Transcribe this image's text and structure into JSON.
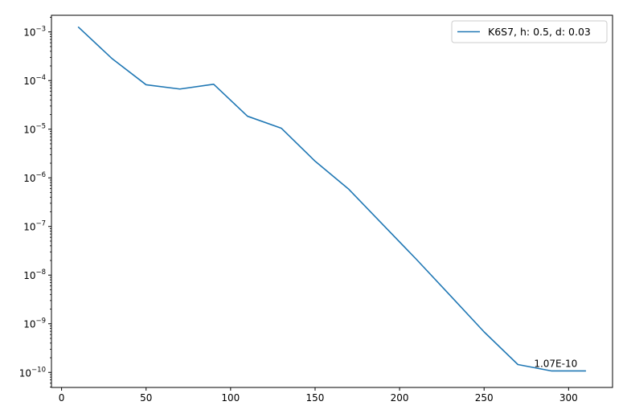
{
  "chart_data": {
    "type": "line",
    "title": "",
    "xlabel": "",
    "ylabel": "",
    "xscale": "linear",
    "yscale": "log",
    "xlim": [
      -6,
      326
    ],
    "ylim": [
      4.9e-11,
      0.0022
    ],
    "xticks": [
      0,
      50,
      100,
      150,
      200,
      250,
      300
    ],
    "xtick_labels": [
      "0",
      "50",
      "100",
      "150",
      "200",
      "250",
      "300"
    ],
    "yticks": [
      1e-10,
      1e-09,
      1e-08,
      1e-07,
      1e-06,
      1e-05,
      0.0001,
      0.001
    ],
    "ytick_labels": [
      {
        "base": "10",
        "exp": "−10"
      },
      {
        "base": "10",
        "exp": "−9"
      },
      {
        "base": "10",
        "exp": "−8"
      },
      {
        "base": "10",
        "exp": "−7"
      },
      {
        "base": "10",
        "exp": "−6"
      },
      {
        "base": "10",
        "exp": "−5"
      },
      {
        "base": "10",
        "exp": "−4"
      },
      {
        "base": "10",
        "exp": "−3"
      }
    ],
    "grid": false,
    "legend": {
      "position": "upper right"
    },
    "series": [
      {
        "name": "K6S7, h: 0.5, d: 0.03",
        "color": "#1f77b4",
        "x": [
          10,
          30,
          50,
          70,
          90,
          110,
          130,
          150,
          170,
          190,
          210,
          230,
          250,
          270,
          290,
          310
        ],
        "y": [
          0.00125,
          0.00028,
          8.2e-05,
          6.7e-05,
          8.4e-05,
          1.85e-05,
          1.05e-05,
          2.2e-06,
          5.8e-07,
          1.1e-07,
          2.1e-08,
          3.8e-09,
          6.8e-10,
          1.45e-10,
          1.07e-10,
          1.07e-10
        ]
      }
    ],
    "annotations": [
      {
        "text": "1.07E-10",
        "x": 290,
        "y": 1.07e-10
      }
    ]
  }
}
